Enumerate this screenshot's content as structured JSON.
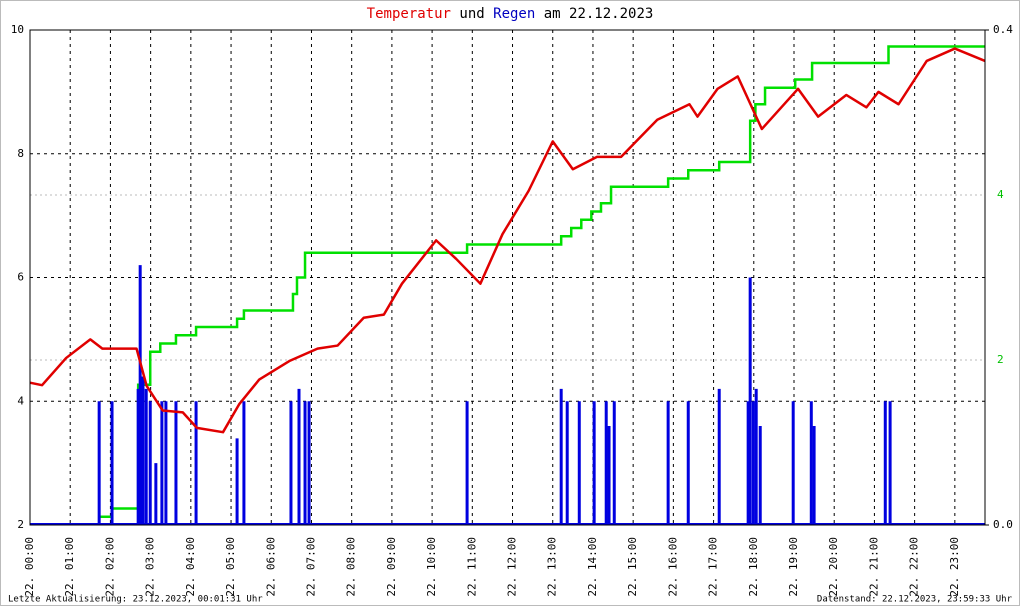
{
  "chart_data": {
    "type": "line",
    "title_parts": [
      {
        "text": "Temperatur",
        "color": "#e00000"
      },
      {
        "text": "und",
        "color": "#000000"
      },
      {
        "text": "Regen",
        "color": "#0000c0"
      },
      {
        "text": "am 22.12.2023",
        "color": "#000000"
      }
    ],
    "xlim": [
      0,
      23.75
    ],
    "xticks": [
      {
        "value": 0,
        "label": "22. 00:00"
      },
      {
        "value": 1,
        "label": "22. 01:00"
      },
      {
        "value": 2,
        "label": "22. 02:00"
      },
      {
        "value": 3,
        "label": "22. 03:00"
      },
      {
        "value": 4,
        "label": "22. 04:00"
      },
      {
        "value": 5,
        "label": "22. 05:00"
      },
      {
        "value": 6,
        "label": "22. 06:00"
      },
      {
        "value": 7,
        "label": "22. 07:00"
      },
      {
        "value": 8,
        "label": "22. 08:00"
      },
      {
        "value": 9,
        "label": "22. 09:00"
      },
      {
        "value": 10,
        "label": "22. 10:00"
      },
      {
        "value": 11,
        "label": "22. 11:00"
      },
      {
        "value": 12,
        "label": "22. 12:00"
      },
      {
        "value": 13,
        "label": "22. 13:00"
      },
      {
        "value": 14,
        "label": "22. 14:00"
      },
      {
        "value": 15,
        "label": "22. 15:00"
      },
      {
        "value": 16,
        "label": "22. 16:00"
      },
      {
        "value": 17,
        "label": "22. 17:00"
      },
      {
        "value": 18,
        "label": "22. 18:00"
      },
      {
        "value": 19,
        "label": "22. 19:00"
      },
      {
        "value": 20,
        "label": "22. 20:00"
      },
      {
        "value": 21,
        "label": "22. 21:00"
      },
      {
        "value": 22,
        "label": "22. 22:00"
      },
      {
        "value": 23,
        "label": "22. 23:00"
      }
    ],
    "ylim": [
      2,
      10
    ],
    "yticks": [
      2,
      4,
      6,
      8,
      10
    ],
    "y2lim": [
      0,
      0.4
    ],
    "y2ticks": [
      {
        "value": 0,
        "label": "0.0"
      },
      {
        "value": 0.4,
        "label": "0.4"
      }
    ],
    "y3lim": [
      0,
      6
    ],
    "y3ticks": [
      2,
      4
    ],
    "y3color": "#00c000",
    "grid": true,
    "temperature": {
      "color": "#e00000",
      "x": [
        0,
        0.3,
        0.9,
        1.5,
        1.8,
        2.65,
        2.9,
        3.3,
        3.8,
        4.15,
        4.8,
        5.2,
        5.7,
        6.45,
        7.15,
        7.65,
        8.3,
        8.8,
        9.25,
        10.1,
        10.6,
        11.2,
        11.75,
        12.4,
        13.0,
        13.5,
        14.1,
        14.7,
        15.6,
        16.4,
        16.6,
        17.1,
        17.6,
        18.2,
        19.1,
        19.6,
        20.3,
        20.8,
        21.1,
        21.6,
        22.3,
        23.0,
        23.75
      ],
      "values": [
        4.3,
        4.26,
        4.7,
        5.0,
        4.85,
        4.85,
        4.25,
        3.85,
        3.82,
        3.57,
        3.5,
        3.95,
        4.35,
        4.65,
        4.85,
        4.9,
        5.35,
        5.4,
        5.9,
        6.6,
        6.3,
        5.9,
        6.7,
        7.4,
        8.2,
        7.75,
        7.95,
        7.95,
        8.55,
        8.8,
        8.6,
        9.05,
        9.25,
        8.4,
        9.05,
        8.6,
        8.95,
        8.75,
        9.0,
        8.8,
        9.5,
        9.7,
        9.5
      ]
    },
    "rain_sum": {
      "color": "#00e000",
      "x": [
        1.72,
        2.04,
        2.69,
        2.99,
        3.24,
        3.63,
        4.13,
        5.15,
        5.32,
        6.54,
        6.64,
        6.84,
        10.87,
        13.21,
        13.46,
        13.71,
        13.96,
        14.2,
        14.45,
        15.87,
        16.37,
        17.14,
        17.91,
        18.04,
        18.28,
        19.03,
        19.45,
        21.35
      ],
      "values": [
        0.1,
        0.2,
        1.7,
        2.1,
        2.2,
        2.3,
        2.4,
        2.5,
        2.6,
        2.8,
        3.0,
        3.3,
        3.4,
        3.5,
        3.6,
        3.7,
        3.8,
        3.9,
        4.1,
        4.2,
        4.3,
        4.4,
        4.9,
        5.1,
        5.3,
        5.4,
        5.6,
        5.8
      ],
      "end": 23.75
    },
    "rain": {
      "color": "#0000e0",
      "x": [
        1.72,
        2.04,
        2.69,
        2.74,
        2.81,
        2.89,
        2.99,
        3.13,
        3.28,
        3.38,
        3.63,
        4.13,
        5.15,
        5.32,
        6.49,
        6.69,
        6.84,
        6.94,
        10.87,
        13.21,
        13.36,
        13.66,
        14.03,
        14.33,
        14.4,
        14.53,
        15.87,
        16.37,
        17.14,
        17.86,
        17.91,
        17.99,
        18.06,
        18.16,
        18.98,
        19.43,
        19.5,
        21.27,
        21.39
      ],
      "values": [
        0.1,
        0.1,
        0.11,
        0.21,
        0.12,
        0.11,
        0.1,
        0.05,
        0.1,
        0.1,
        0.1,
        0.1,
        0.07,
        0.1,
        0.1,
        0.11,
        0.1,
        0.1,
        0.1,
        0.11,
        0.1,
        0.1,
        0.1,
        0.1,
        0.08,
        0.1,
        0.1,
        0.1,
        0.11,
        0.1,
        0.2,
        0.1,
        0.11,
        0.08,
        0.1,
        0.1,
        0.08,
        0.1,
        0.1
      ]
    },
    "footer_left": "Letzte Aktualisierung: 23.12.2023, 00:01:31 Uhr",
    "footer_right": "Datenstand: 22.12.2023, 23:59:33 Uhr"
  }
}
